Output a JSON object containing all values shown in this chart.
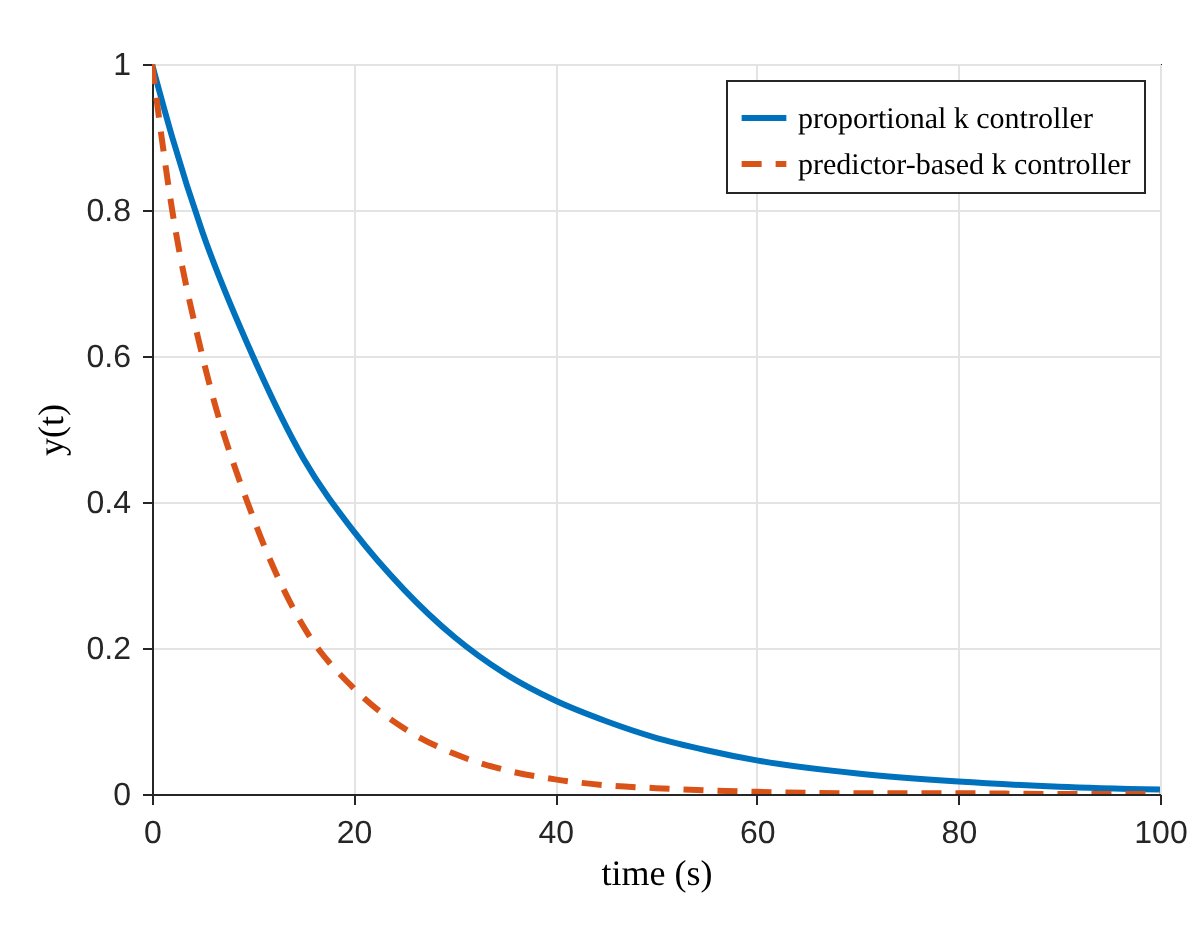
{
  "chart_data": {
    "type": "line",
    "xlabel": "time (s)",
    "ylabel": "y(t)",
    "xlim": [
      0,
      100
    ],
    "ylim": [
      0,
      1
    ],
    "xticks": [
      0,
      20,
      40,
      60,
      80,
      100
    ],
    "yticks": [
      0,
      0.2,
      0.4,
      0.6,
      0.8,
      1
    ],
    "grid": true,
    "legend": "top right",
    "x": [
      0,
      2,
      5,
      10,
      15,
      20,
      25,
      30,
      35,
      40,
      45,
      50,
      55,
      60,
      70,
      80,
      90,
      100
    ],
    "series": [
      {
        "name": "proportional k controller",
        "color": "#0072bd",
        "line_style": "solid",
        "values": [
          1,
          0.9,
          0.77,
          0.6,
          0.46,
          0.36,
          0.28,
          0.215,
          0.165,
          0.128,
          0.1,
          0.077,
          0.06,
          0.046,
          0.028,
          0.017,
          0.01,
          0.006
        ]
      },
      {
        "name": "predictor-based k controller",
        "color": "#d95319",
        "line_style": "dashed",
        "values": [
          1,
          0.8,
          0.6,
          0.38,
          0.23,
          0.145,
          0.09,
          0.055,
          0.033,
          0.02,
          0.012,
          0.008,
          0.005,
          0.003,
          0.001,
          0.001,
          0,
          0
        ]
      }
    ]
  }
}
